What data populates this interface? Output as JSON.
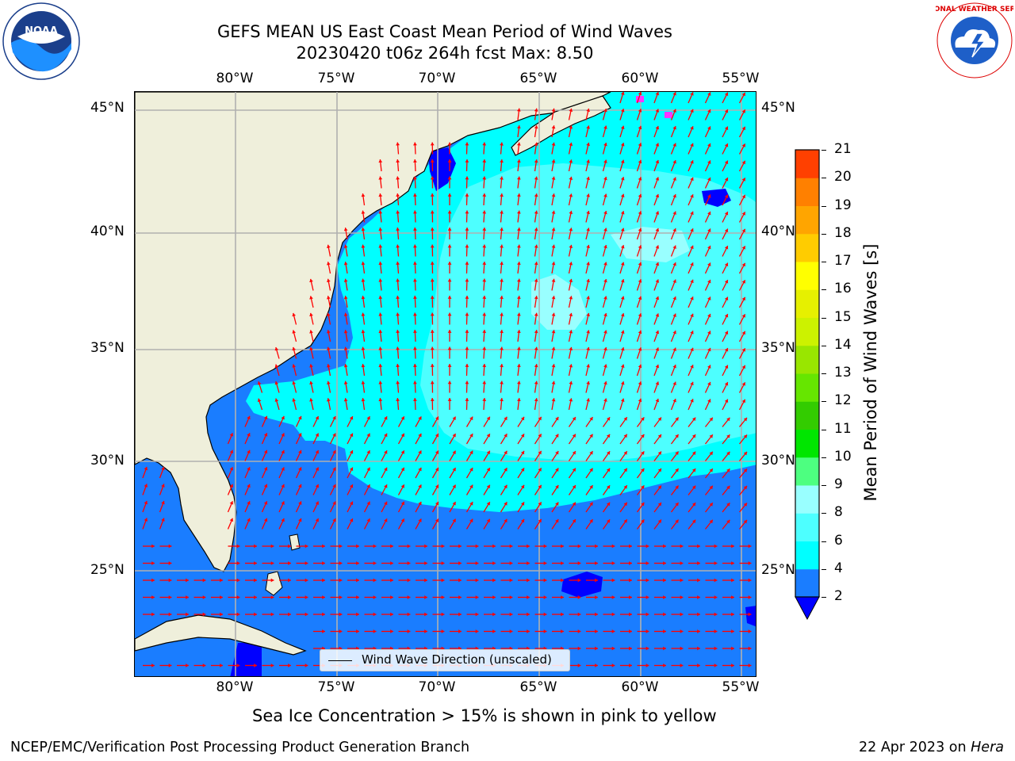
{
  "header": {
    "title_line1": "GEFS MEAN US East Coast Mean Period of Wind Waves",
    "title_line2": "20230420 t06z 264h fcst   Max: 8.50"
  },
  "logos": {
    "noaa_text": "NOAA",
    "nws_text": "NATIONAL WEATHER SERVICE"
  },
  "map": {
    "lon_labels": [
      "80°W",
      "75°W",
      "70°W",
      "65°W",
      "60°W",
      "55°W"
    ],
    "lat_labels": [
      "45°N",
      "40°N",
      "35°N",
      "30°N",
      "25°N"
    ],
    "legend_text": "Wind Wave Direction (unscaled)",
    "land_color": "#efefdb",
    "ocean_colors": {
      "lt2": "#0000ff",
      "2to4": "#1a7dff",
      "4to6": "#00ffff",
      "6to8": "#4dffff",
      "8to9": "#99ffff"
    },
    "arrow_color": "#ff0000",
    "ice_color": "#ff33ff"
  },
  "colorbar": {
    "label": "Mean Period of Wind Waves [s]",
    "ticks": [
      "2",
      "4",
      "6",
      "8",
      "9",
      "10",
      "11",
      "12",
      "13",
      "14",
      "15",
      "16",
      "17",
      "18",
      "19",
      "20",
      "21"
    ],
    "colors": [
      "#1a7dff",
      "#00ffff",
      "#4dffff",
      "#99ffff",
      "#4dff80",
      "#00e600",
      "#33cc00",
      "#66e600",
      "#99e600",
      "#ccf200",
      "#e6f000",
      "#ffff00",
      "#ffcc00",
      "#ffa500",
      "#ff8000",
      "#ff4000",
      "#ff0000"
    ],
    "under_color": "#0000ff"
  },
  "footer": {
    "sea_ice_note": "Sea Ice Concentration > 15% is shown in pink to yellow",
    "org": "NCEP/EMC/Verification Post Processing Product Generation Branch",
    "date": "22 Apr 2023 on ",
    "host": "Hera"
  }
}
